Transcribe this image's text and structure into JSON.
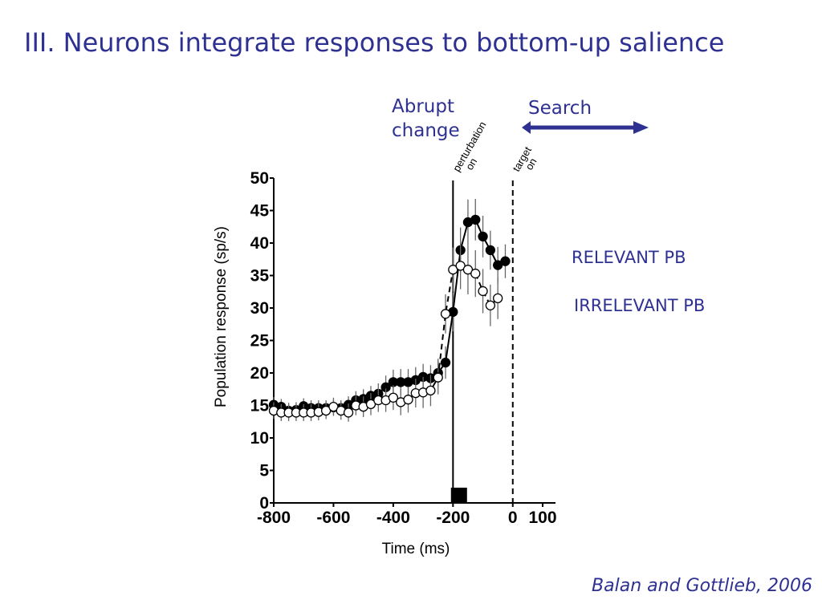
{
  "slide": {
    "title": "III. Neurons integrate responses to bottom-up salience",
    "citation": "Balan and Gottlieb, 2006",
    "annotations": {
      "abrupt_change": [
        "Abrupt",
        "change"
      ],
      "search": "Search"
    },
    "colors": {
      "title": "#2e3192",
      "arrow": "#2e3192"
    }
  },
  "chart_data": {
    "type": "line",
    "xlabel": "Time (ms)",
    "ylabel": "Population response (sp/s)",
    "xlim": [
      -800,
      110
    ],
    "ylim": [
      0,
      50
    ],
    "xticks": [
      -800,
      -600,
      -400,
      -200,
      0,
      100
    ],
    "yticks": [
      0,
      5,
      10,
      15,
      20,
      25,
      30,
      35,
      40,
      45,
      50
    ],
    "events": [
      {
        "x": -200,
        "label": [
          "perturbation",
          "on"
        ],
        "style": "solid"
      },
      {
        "x": 0,
        "label": [
          "target",
          "on"
        ],
        "style": "dashed"
      }
    ],
    "stimulus_marker": {
      "x": -180,
      "shape": "filled-square"
    },
    "series": [
      {
        "name": "RELEVANT PB",
        "marker": "filled-circle",
        "line": "solid",
        "x": [
          -800,
          -775,
          -750,
          -725,
          -700,
          -675,
          -650,
          -625,
          -600,
          -575,
          -550,
          -525,
          -500,
          -475,
          -450,
          -425,
          -400,
          -375,
          -350,
          -325,
          -300,
          -275,
          -250,
          -225,
          -200,
          -175,
          -150,
          -125,
          -100,
          -75,
          -50,
          -25,
          0,
          25,
          50,
          75,
          100
        ],
        "y": [
          15.1,
          14.8,
          14.2,
          14.3,
          14.9,
          14.6,
          14.6,
          14.6,
          14.7,
          14.6,
          15.1,
          15.8,
          16.0,
          16.5,
          16.8,
          17.8,
          18.6,
          18.6,
          18.6,
          18.9,
          19.4,
          19.2,
          20.0,
          21.6,
          29.4,
          38.9,
          43.2,
          43.6,
          41.0,
          38.9,
          36.6,
          37.2,
          null,
          null,
          null,
          null,
          null
        ],
        "err": [
          1.2,
          1.2,
          1.2,
          1.2,
          1.2,
          1.2,
          1.2,
          1.2,
          1.2,
          1.2,
          1.3,
          1.4,
          1.5,
          1.5,
          1.6,
          1.8,
          1.9,
          2.0,
          2.0,
          2.0,
          2.0,
          2.0,
          2.2,
          2.5,
          3.0,
          3.5,
          3.5,
          3.2,
          3.2,
          3.0,
          2.8,
          2.6,
          null,
          null,
          null,
          null,
          null
        ]
      },
      {
        "name": "IRRELEVANT PB",
        "marker": "open-circle",
        "line": "dashed",
        "x": [
          -800,
          -775,
          -750,
          -725,
          -700,
          -675,
          -650,
          -625,
          -600,
          -575,
          -550,
          -525,
          -500,
          -475,
          -450,
          -425,
          -400,
          -375,
          -350,
          -325,
          -300,
          -275,
          -250,
          -225,
          -200,
          -175,
          -150,
          -125,
          -100,
          -75,
          -50,
          -25,
          0,
          25,
          50,
          75,
          100
        ],
        "y": [
          14.2,
          13.9,
          13.9,
          13.9,
          13.9,
          13.9,
          14.0,
          14.2,
          14.8,
          14.2,
          13.9,
          15.0,
          14.8,
          15.2,
          15.8,
          15.8,
          16.2,
          15.5,
          15.9,
          16.9,
          17.0,
          17.3,
          19.3,
          29.1,
          35.9,
          36.5,
          35.9,
          35.3,
          32.6,
          30.4,
          31.5,
          null,
          null,
          null,
          null,
          null,
          null
        ],
        "err": [
          1.3,
          1.3,
          1.3,
          1.3,
          1.3,
          1.3,
          1.3,
          1.3,
          1.4,
          1.4,
          1.4,
          1.5,
          1.6,
          1.7,
          1.8,
          1.8,
          1.9,
          2.0,
          2.0,
          2.2,
          2.4,
          2.4,
          2.6,
          3.0,
          3.4,
          3.6,
          3.8,
          3.6,
          3.4,
          3.2,
          3.2,
          null,
          null,
          null,
          null,
          null,
          null
        ]
      }
    ]
  }
}
